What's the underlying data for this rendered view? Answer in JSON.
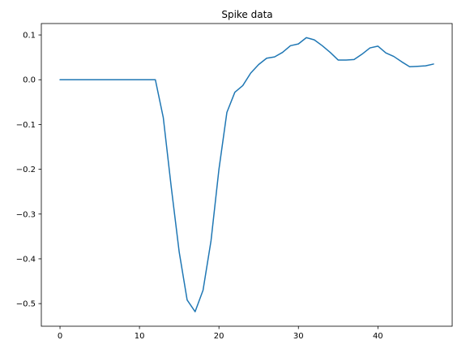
{
  "chart_data": {
    "type": "line",
    "title": "Spike data",
    "xlabel": "",
    "ylabel": "",
    "xlim": [
      -2.35,
      49.35
    ],
    "ylim": [
      -0.5505,
      0.1255
    ],
    "xticks": [
      0,
      10,
      20,
      30,
      40
    ],
    "yticks": [
      -0.5,
      -0.4,
      -0.3,
      -0.2,
      -0.1,
      0.0,
      0.1
    ],
    "ytick_labels": [
      "−0.5",
      "−0.4",
      "−0.3",
      "−0.2",
      "−0.1",
      "0.0",
      "0.1"
    ],
    "grid": false,
    "series": [
      {
        "color": "#1f77b4",
        "x": [
          0,
          1,
          2,
          3,
          4,
          5,
          6,
          7,
          8,
          9,
          10,
          11,
          12,
          13,
          14,
          15,
          16,
          17,
          18,
          19,
          20,
          21,
          22,
          23,
          24,
          25,
          26,
          27,
          28,
          29,
          30,
          31,
          32,
          33,
          34,
          35,
          36,
          37,
          38,
          39,
          40,
          41,
          42,
          43,
          44,
          45,
          46,
          47
        ],
        "y": [
          0,
          0,
          0,
          0,
          0,
          0,
          0,
          0,
          0,
          0,
          0,
          0,
          0,
          -0.085,
          -0.24,
          -0.385,
          -0.492,
          -0.518,
          -0.47,
          -0.36,
          -0.2,
          -0.073,
          -0.028,
          -0.013,
          0.015,
          0.034,
          0.048,
          0.051,
          0.061,
          0.076,
          0.08,
          0.094,
          0.089,
          0.076,
          0.061,
          0.044,
          0.044,
          0.045,
          0.057,
          0.071,
          0.075,
          0.06,
          0.052,
          0.04,
          0.029,
          0.03,
          0.031,
          0.035
        ]
      }
    ]
  }
}
